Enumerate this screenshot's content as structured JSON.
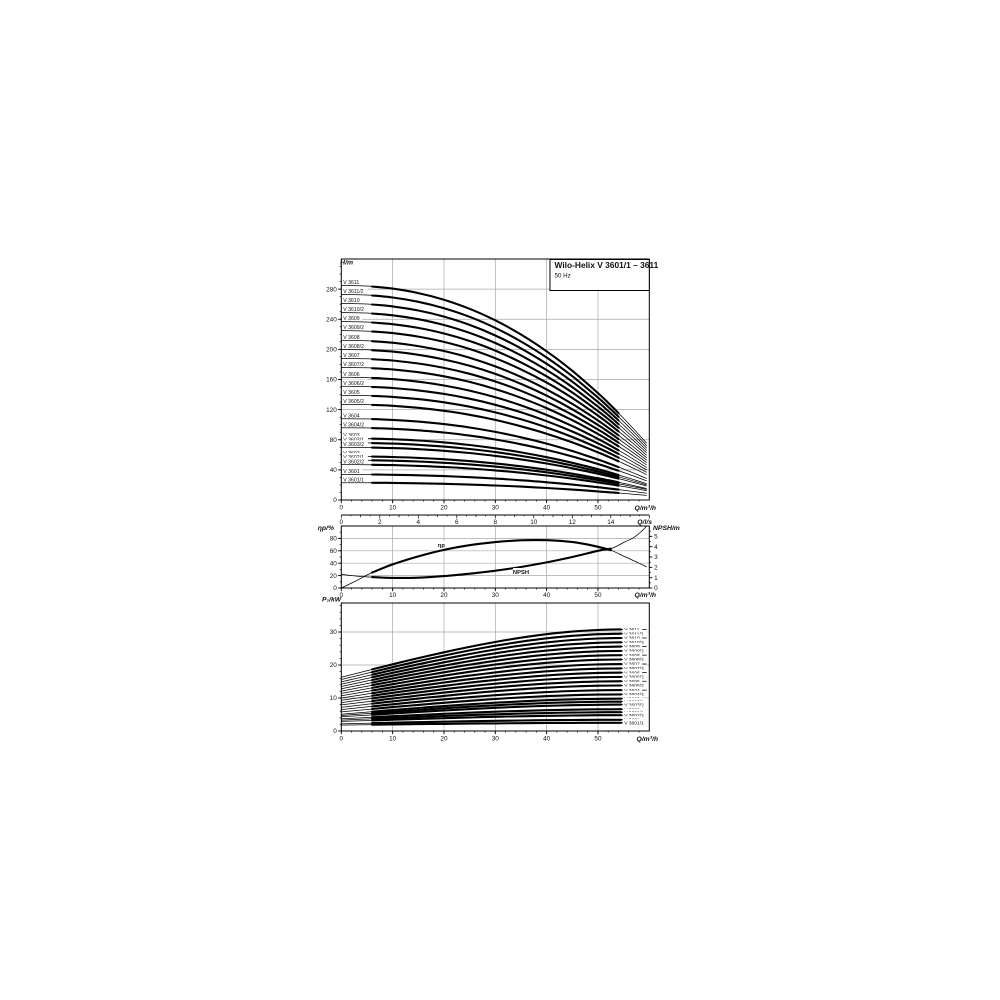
{
  "header": {
    "title": "Wilo-Helix V 3601/1 – 3611",
    "subtitle": "50 Hz"
  },
  "chart_data": [
    {
      "type": "line",
      "name": "head-flow-curves",
      "ylabel": "H/m",
      "xlabel": "Q/m³/h",
      "x2label": "Q/l/s",
      "xlim": [
        0,
        60
      ],
      "ylim": [
        0,
        320
      ],
      "xticks": [
        0,
        10,
        20,
        30,
        40,
        50
      ],
      "yticks": [
        0,
        40,
        80,
        120,
        160,
        200,
        240,
        280
      ],
      "x2ticks": [
        0,
        2,
        4,
        6,
        8,
        10,
        12,
        14
      ],
      "x2max": 16,
      "grid": true,
      "legend_position": "left-inline",
      "q": [
        0,
        5,
        10,
        15,
        20,
        25,
        30,
        35,
        40,
        45,
        50,
        52,
        55,
        57.5,
        59.5
      ],
      "head_factor": [
        1,
        0.997,
        0.985,
        0.964,
        0.933,
        0.891,
        0.837,
        0.771,
        0.693,
        0.602,
        0.498,
        0.453,
        0.381,
        0.317,
        0.264
      ],
      "solid_q_range": [
        6,
        54
      ],
      "series": [
        {
          "name": "V 3611",
          "shutoff_head_m": 285
        },
        {
          "name": "V 3611/2",
          "shutoff_head_m": 273
        },
        {
          "name": "V 3610",
          "shutoff_head_m": 261
        },
        {
          "name": "V 3610/2",
          "shutoff_head_m": 249
        },
        {
          "name": "V 3609",
          "shutoff_head_m": 237
        },
        {
          "name": "V 3609/2",
          "shutoff_head_m": 225
        },
        {
          "name": "V 3608",
          "shutoff_head_m": 212
        },
        {
          "name": "V 3608/2",
          "shutoff_head_m": 200
        },
        {
          "name": "V 3607",
          "shutoff_head_m": 188
        },
        {
          "name": "V 3607/2",
          "shutoff_head_m": 176
        },
        {
          "name": "V 3606",
          "shutoff_head_m": 163
        },
        {
          "name": "V 3606/2",
          "shutoff_head_m": 151
        },
        {
          "name": "V 3605",
          "shutoff_head_m": 139
        },
        {
          "name": "V 3605/2",
          "shutoff_head_m": 127
        },
        {
          "name": "V 3604",
          "shutoff_head_m": 108
        },
        {
          "name": "V 3604/2",
          "shutoff_head_m": 96
        },
        {
          "name": "V 3603",
          "shutoff_head_m": 82
        },
        {
          "name": "V 3603/1",
          "shutoff_head_m": 76
        },
        {
          "name": "V 3603/2",
          "shutoff_head_m": 70
        },
        {
          "name": "V 3602",
          "shutoff_head_m": 58
        },
        {
          "name": "V 3602/1",
          "shutoff_head_m": 53
        },
        {
          "name": "V 3602/2",
          "shutoff_head_m": 47
        },
        {
          "name": "V 3601",
          "shutoff_head_m": 34
        },
        {
          "name": "V 3601/1",
          "shutoff_head_m": 23
        }
      ]
    },
    {
      "type": "line",
      "name": "efficiency-and-npsh",
      "ylabel_left": "ηp/%",
      "ylabel_right": "NPSH/m",
      "xlabel": "Q/m³/h",
      "xlim": [
        0,
        60
      ],
      "ylim_left": [
        0,
        100
      ],
      "ylim_right": [
        0,
        6
      ],
      "xticks": [
        0,
        10,
        20,
        30,
        40,
        50
      ],
      "yticks_left": [
        0,
        20,
        40,
        60,
        80
      ],
      "yticks_right": [
        0,
        1,
        2,
        3,
        4,
        5
      ],
      "grid": true,
      "solid_q_range": [
        6,
        52.5
      ],
      "series": [
        {
          "name": "ηp",
          "axis": "left",
          "label_q": 19.5,
          "label_y": 69,
          "x": [
            0,
            3,
            6,
            10,
            15,
            20,
            25,
            30,
            34,
            38,
            42,
            46,
            50,
            52.5,
            55,
            57.5,
            59.5
          ],
          "y": [
            0,
            12,
            25,
            38,
            51,
            61.5,
            69,
            74,
            76.5,
            77.3,
            76.3,
            73,
            66.5,
            61,
            51.5,
            42,
            34
          ]
        },
        {
          "name": "NPSH",
          "axis": "right",
          "label_q": 35,
          "label_y": 25.5,
          "x": [
            0,
            3,
            6,
            10,
            15,
            20,
            25,
            30,
            35,
            40,
            45,
            50,
            52.5,
            55,
            57,
            58.5,
            59.5
          ],
          "y": [
            1.33,
            1.15,
            1.05,
            0.98,
            1.0,
            1.15,
            1.38,
            1.67,
            2.03,
            2.48,
            3.0,
            3.6,
            3.8,
            4.4,
            4.9,
            5.5,
            6.0
          ]
        }
      ]
    },
    {
      "type": "line",
      "name": "shaft-power-curves",
      "ylabel": "P₂/kW",
      "xlabel": "Q/m³/h",
      "xlim": [
        0,
        60
      ],
      "ylim": [
        0,
        38.8
      ],
      "xticks": [
        0,
        10,
        20,
        30,
        40,
        50
      ],
      "yticks": [
        0,
        10,
        20,
        30
      ],
      "grid": true,
      "q": [
        0,
        5,
        10,
        15,
        20,
        25,
        30,
        35,
        40,
        45,
        50,
        55
      ],
      "power_shape": [
        0,
        0.136,
        0.27,
        0.399,
        0.521,
        0.635,
        0.737,
        0.826,
        0.899,
        0.953,
        0.988,
        1
      ],
      "solid_q_range": [
        6,
        54.5
      ],
      "series": [
        {
          "name": "V 3611",
          "p2_start_kw": 16.3,
          "p2_end_kw": 30.8
        },
        {
          "name": "V 3611/2",
          "p2_start_kw": 15.6,
          "p2_end_kw": 29.5
        },
        {
          "name": "V 3610",
          "p2_start_kw": 14.9,
          "p2_end_kw": 28.2
        },
        {
          "name": "V 3610/2",
          "p2_start_kw": 14.2,
          "p2_end_kw": 26.9
        },
        {
          "name": "V 3609",
          "p2_start_kw": 13.5,
          "p2_end_kw": 25.6
        },
        {
          "name": "V 3609/2",
          "p2_start_kw": 12.8,
          "p2_end_kw": 24.3
        },
        {
          "name": "V 3608",
          "p2_start_kw": 12.1,
          "p2_end_kw": 23.0
        },
        {
          "name": "V 3608/2",
          "p2_start_kw": 11.4,
          "p2_end_kw": 21.7
        },
        {
          "name": "V 3607",
          "p2_start_kw": 10.7,
          "p2_end_kw": 20.3
        },
        {
          "name": "V 3607/2",
          "p2_start_kw": 10.0,
          "p2_end_kw": 19.0
        },
        {
          "name": "V 3606",
          "p2_start_kw": 9.3,
          "p2_end_kw": 17.7
        },
        {
          "name": "V 3606/2",
          "p2_start_kw": 8.6,
          "p2_end_kw": 16.4
        },
        {
          "name": "V 3605",
          "p2_start_kw": 7.9,
          "p2_end_kw": 15.1
        },
        {
          "name": "V 3605/2",
          "p2_start_kw": 7.2,
          "p2_end_kw": 13.8
        },
        {
          "name": "V 3604",
          "p2_start_kw": 6.5,
          "p2_end_kw": 12.4
        },
        {
          "name": "V 3604/2",
          "p2_start_kw": 5.8,
          "p2_end_kw": 11.1
        },
        {
          "name": "V 3603",
          "p2_start_kw": 5.1,
          "p2_end_kw": 9.8
        },
        {
          "name": "V 3603/1",
          "p2_start_kw": 4.7,
          "p2_end_kw": 8.9
        },
        {
          "name": "V 3603/2",
          "p2_start_kw": 4.3,
          "p2_end_kw": 8.0
        },
        {
          "name": "V 3602",
          "p2_start_kw": 3.7,
          "p2_end_kw": 6.6
        },
        {
          "name": "V 3602/1",
          "p2_start_kw": 3.3,
          "p2_end_kw": 5.7
        },
        {
          "name": "V 3602/2",
          "p2_start_kw": 2.9,
          "p2_end_kw": 4.8
        },
        {
          "name": "V 3601",
          "p2_start_kw": 2.2,
          "p2_end_kw": 3.4
        },
        {
          "name": "V 3601/1",
          "p2_start_kw": 1.8,
          "p2_end_kw": 2.5
        }
      ]
    }
  ],
  "colors": {
    "curve": "#000000",
    "grid": "#a8a8a8",
    "frame": "#000000",
    "background": "#ffffff"
  }
}
